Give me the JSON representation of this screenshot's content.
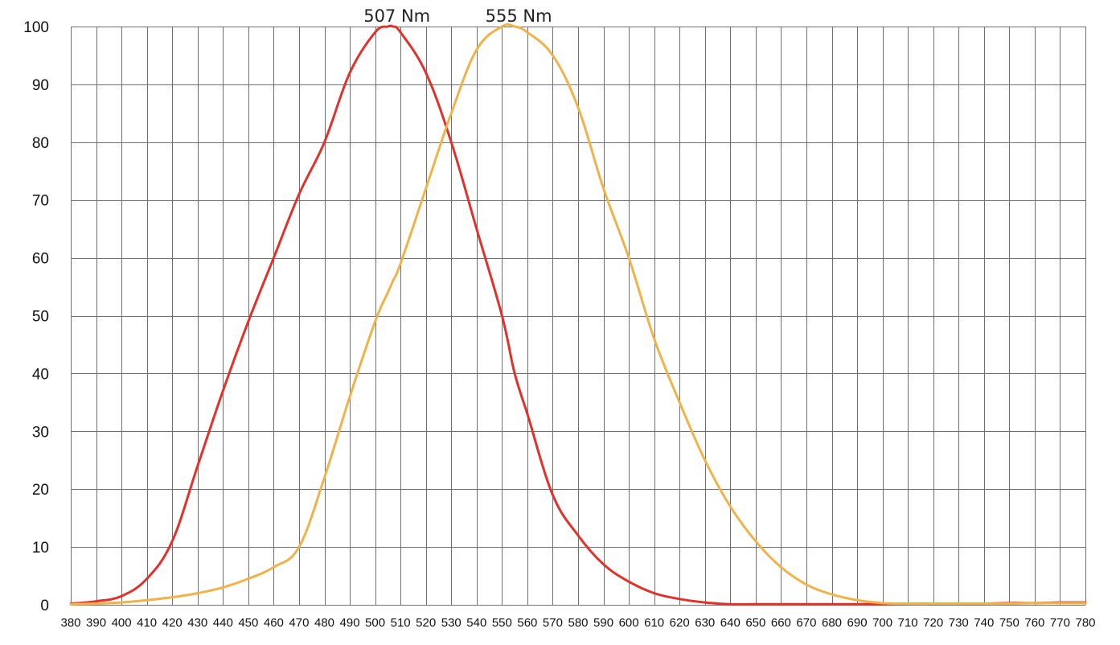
{
  "colors": {
    "scotopic": "#e3302a",
    "photopic": "#f2b24a",
    "grid": "#6f6f6f"
  },
  "chart_data": {
    "type": "line",
    "x": [
      380,
      390,
      400,
      410,
      420,
      430,
      440,
      450,
      460,
      470,
      480,
      490,
      500,
      505,
      507,
      510,
      520,
      530,
      540,
      550,
      555,
      560,
      570,
      580,
      590,
      600,
      610,
      620,
      630,
      640,
      650,
      660,
      670,
      680,
      690,
      700,
      710,
      720,
      730,
      740,
      750,
      760,
      770,
      780
    ],
    "series": [
      {
        "values": [
          0.2,
          0.6,
          1.5,
          4.5,
          11,
          24,
          37,
          49,
          60,
          71,
          80,
          92,
          99,
          100,
          100,
          99,
          92,
          80,
          65,
          50,
          40,
          33,
          19,
          12,
          7,
          4,
          2,
          1,
          0.4,
          0.1,
          0.1,
          0.1,
          0.1,
          0.1,
          0.1,
          0.1,
          0.2,
          0.2,
          0.2,
          0.2,
          0.3,
          0.3,
          0.4,
          0.4
        ],
        "color": "#e3302a"
      },
      {
        "values": [
          0.1,
          0.2,
          0.4,
          0.8,
          1.3,
          2.0,
          3.0,
          4.5,
          6.5,
          10,
          22,
          36,
          49,
          54,
          56,
          59,
          72,
          85,
          96,
          100,
          100,
          99,
          95,
          86,
          72,
          60,
          46,
          35,
          25,
          17,
          11,
          6.5,
          3.5,
          1.8,
          0.8,
          0.3,
          0.2,
          0.2,
          0.2,
          0.2,
          0.2,
          0.3,
          0.3,
          0.3
        ],
        "color": "#f2b24a"
      }
    ],
    "xlim": [
      380,
      780
    ],
    "ylim": [
      0,
      100
    ],
    "xticks": [
      "380",
      "390",
      "400",
      "410",
      "420",
      "430",
      "440",
      "450",
      "460",
      "470",
      "480",
      "490",
      "500",
      "510",
      "520",
      "530",
      "540",
      "550",
      "560",
      "570",
      "580",
      "590",
      "600",
      "610",
      "620",
      "630",
      "640",
      "650",
      "660",
      "670",
      "680",
      "690",
      "700",
      "710",
      "720",
      "730",
      "740",
      "750",
      "760",
      "770",
      "780"
    ],
    "yticks": [
      "0",
      "10",
      "20",
      "30",
      "40",
      "50",
      "60",
      "70",
      "80",
      "90",
      "100"
    ],
    "annotations": [
      {
        "text": "507 Nm",
        "x": 507,
        "y": 100
      },
      {
        "text": "555 Nm",
        "x": 555,
        "y": 100
      }
    ],
    "grid": true,
    "title": "",
    "xlabel": "",
    "ylabel": ""
  }
}
